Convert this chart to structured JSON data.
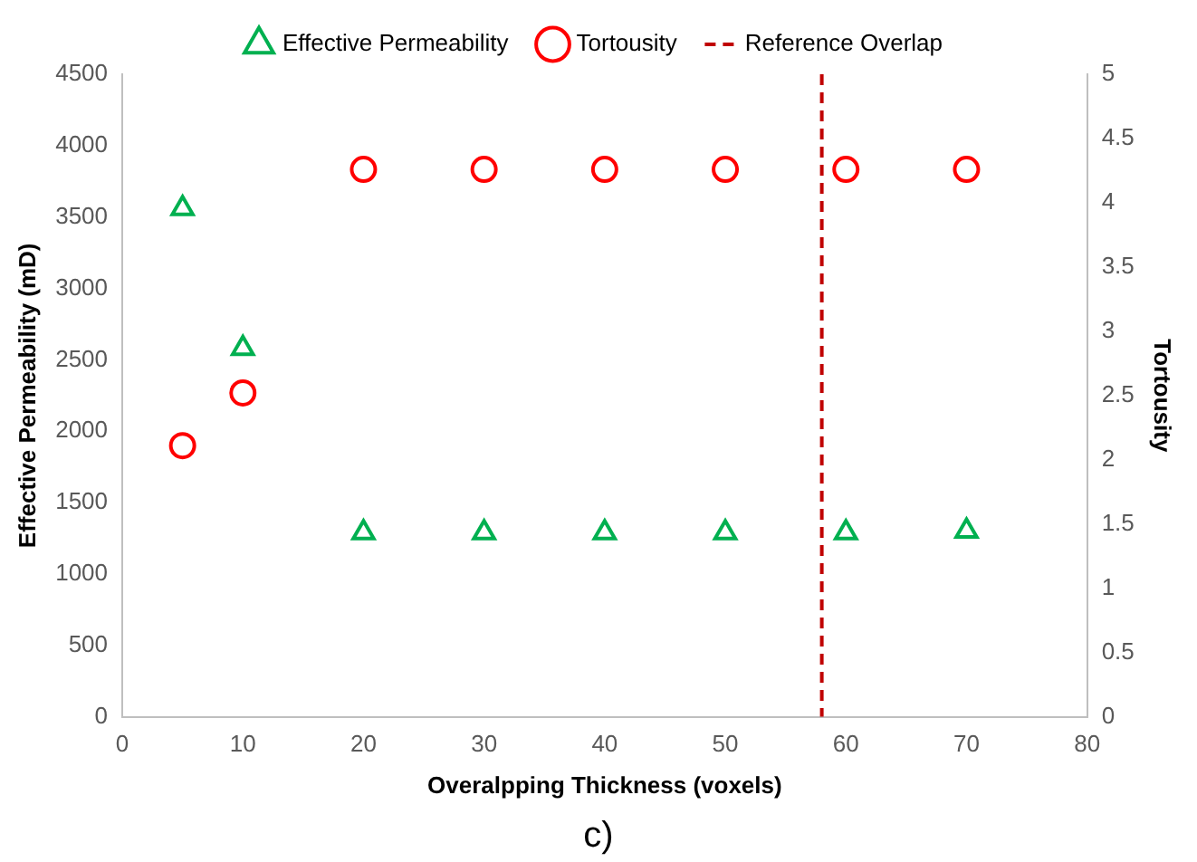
{
  "chart_data": {
    "type": "scatter",
    "xlabel": "Overalpping Thickness (voxels)",
    "ylabel": "Effective Permeability (mD)",
    "y2label": "Tortousity",
    "x": [
      5,
      10,
      20,
      30,
      40,
      50,
      60,
      70
    ],
    "series": [
      {
        "name": "Effective Permeability",
        "color": "#00b050",
        "marker": "triangle",
        "values": [
          3560,
          2580,
          1290,
          1290,
          1290,
          1290,
          1290,
          1300
        ]
      },
      {
        "name": "Tortousity",
        "color": "#ff0000",
        "marker": "circle",
        "axis": "y2",
        "values": [
          2.11,
          2.52,
          4.26,
          4.26,
          4.26,
          4.26,
          4.26,
          4.26
        ]
      }
    ],
    "xlim": [
      0,
      80
    ],
    "xticks": [
      0,
      10,
      20,
      30,
      40,
      50,
      60,
      70,
      80
    ],
    "ylim": [
      0,
      4500
    ],
    "yticks": [
      0,
      500,
      1000,
      1500,
      2000,
      2500,
      3000,
      3500,
      4000,
      4500
    ],
    "y2lim": [
      0,
      5
    ],
    "y2ticks": [
      0,
      0.5,
      1,
      1.5,
      2,
      2.5,
      3,
      3.5,
      4,
      4.5,
      5
    ],
    "ref_lines": [
      {
        "axis": "x",
        "value": 58,
        "label": "Reference Overlap",
        "color": "#c00000",
        "line_style": "dashed"
      }
    ],
    "annotations": [
      "c)"
    ],
    "legend": "top",
    "grid": false
  }
}
